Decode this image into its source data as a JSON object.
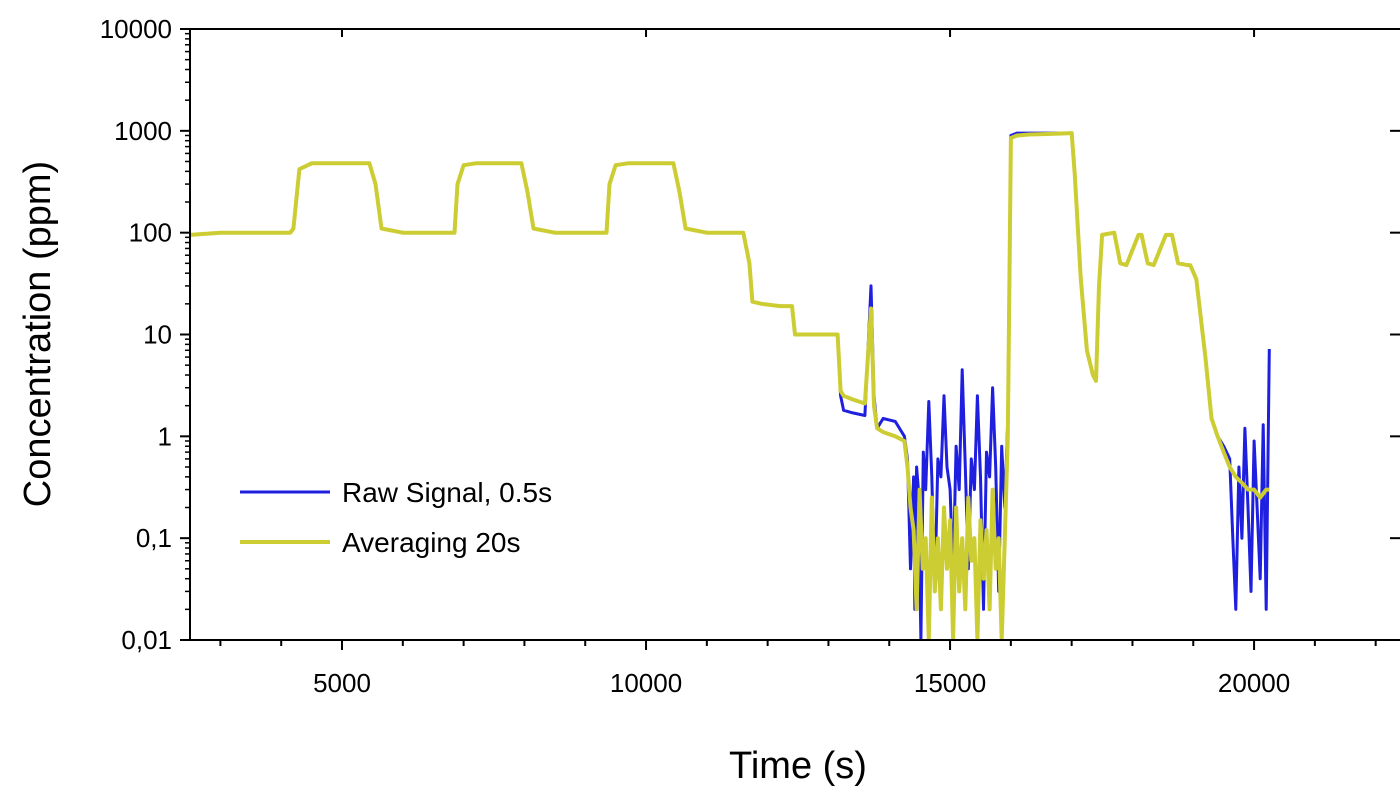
{
  "chart_data": {
    "type": "line",
    "title": "",
    "xlabel": "Time (s)",
    "ylabel": "Concentration (ppm)",
    "xlim": [
      2500,
      22400
    ],
    "ylim": [
      0.01,
      10000
    ],
    "yscale": "log",
    "grid": false,
    "legend_position": "bottom-left",
    "x_ticks": [
      5000,
      10000,
      15000,
      20000
    ],
    "x_tick_labels": [
      "5000",
      "10000",
      "15000",
      "20000"
    ],
    "y_ticks": [
      0.01,
      0.1,
      1,
      10,
      100,
      1000,
      10000
    ],
    "y_tick_labels": [
      "0,01",
      "0,1",
      "1",
      "10",
      "100",
      "1000",
      "10000"
    ],
    "series": [
      {
        "name": "Raw Signal, 0.5s",
        "color": "#1f1fe0",
        "x": [
          2500,
          3000,
          3500,
          4100,
          4150,
          4200,
          4300,
          4500,
          5000,
          5450,
          5550,
          5650,
          6000,
          6850,
          6900,
          7000,
          7200,
          7500,
          7950,
          8050,
          8150,
          8500,
          9350,
          9400,
          9500,
          9700,
          10000,
          10450,
          10550,
          10650,
          11000,
          11600,
          11700,
          11750,
          11900,
          12200,
          12400,
          12450,
          12550,
          12800,
          13150,
          13200,
          13250,
          13400,
          13600,
          13700,
          13750,
          13800,
          13900,
          14100,
          14250,
          14300,
          14350,
          14400,
          14420,
          14450,
          14480,
          14520,
          14560,
          14600,
          14650,
          14700,
          14750,
          14800,
          14850,
          14900,
          14950,
          15000,
          15050,
          15100,
          15150,
          15200,
          15250,
          15300,
          15350,
          15400,
          15450,
          15500,
          15550,
          15600,
          15650,
          15700,
          15750,
          15800,
          15850,
          15900,
          15950,
          16000,
          16100,
          16300,
          16600,
          17000,
          17050,
          17150,
          17250,
          17350,
          17400,
          17450,
          17500,
          17700,
          17800,
          17900,
          18100,
          18150,
          18250,
          18350,
          18550,
          18650,
          18750,
          18900,
          18950,
          19050,
          19200,
          19300,
          19400,
          19500,
          19600,
          19650,
          19700,
          19750,
          19800,
          19850,
          19900,
          19950,
          20000,
          20050,
          20100,
          20150,
          20200,
          20250
        ],
        "values": [
          95,
          100,
          100,
          100,
          100,
          110,
          420,
          480,
          480,
          480,
          300,
          110,
          100,
          100,
          300,
          460,
          480,
          480,
          480,
          250,
          110,
          100,
          100,
          300,
          460,
          480,
          480,
          480,
          250,
          110,
          100,
          100,
          50,
          21,
          20,
          19,
          19,
          10,
          10,
          10,
          10,
          2.5,
          1.8,
          1.7,
          1.6,
          30,
          2.5,
          1.2,
          1.5,
          1.4,
          1.0,
          0.6,
          0.05,
          0.4,
          0.02,
          0.5,
          0.3,
          0.01,
          0.7,
          0.3,
          2.2,
          0.4,
          0.03,
          0.6,
          0.4,
          2.5,
          0.5,
          0.3,
          0.04,
          0.8,
          0.3,
          4.5,
          0.5,
          0.05,
          0.6,
          0.3,
          2.5,
          0.4,
          0.02,
          0.7,
          0.4,
          3.0,
          0.5,
          0.03,
          0.8,
          0.2,
          1.5,
          900,
          950,
          950,
          950,
          950,
          380,
          35,
          7,
          4,
          3.5,
          30,
          95,
          100,
          50,
          48,
          95,
          95,
          50,
          48,
          95,
          95,
          50,
          48,
          48,
          35,
          6,
          1.5,
          1.0,
          0.8,
          0.6,
          0.1,
          0.02,
          0.5,
          0.1,
          1.2,
          0.2,
          0.03,
          0.9,
          0.2,
          0.04,
          1.3,
          0.02,
          7.2
        ]
      },
      {
        "name": "Averaging 20s",
        "color": "#cccc33",
        "x": [
          2500,
          3000,
          3500,
          4100,
          4150,
          4200,
          4300,
          4500,
          5000,
          5450,
          5550,
          5650,
          6000,
          6850,
          6900,
          7000,
          7200,
          7500,
          7950,
          8050,
          8150,
          8500,
          9350,
          9400,
          9500,
          9700,
          10000,
          10450,
          10550,
          10650,
          11000,
          11600,
          11700,
          11750,
          11900,
          12200,
          12400,
          12450,
          12550,
          12800,
          13150,
          13200,
          13250,
          13400,
          13600,
          13700,
          13750,
          13800,
          13900,
          14100,
          14250,
          14300,
          14350,
          14400,
          14450,
          14500,
          14550,
          14600,
          14650,
          14700,
          14750,
          14800,
          14850,
          14900,
          14950,
          15000,
          15050,
          15100,
          15150,
          15200,
          15250,
          15300,
          15350,
          15400,
          15450,
          15500,
          15550,
          15600,
          15650,
          15700,
          15750,
          15800,
          15850,
          15900,
          15950,
          16000,
          16100,
          16300,
          16600,
          17000,
          17050,
          17150,
          17250,
          17350,
          17400,
          17450,
          17500,
          17700,
          17800,
          17900,
          18100,
          18150,
          18250,
          18350,
          18550,
          18650,
          18750,
          18900,
          18950,
          19050,
          19200,
          19300,
          19400,
          19500,
          19600,
          19700,
          19800,
          19900,
          20000,
          20100,
          20200,
          20250
        ],
        "values": [
          95,
          100,
          100,
          100,
          100,
          110,
          420,
          480,
          480,
          480,
          300,
          110,
          100,
          100,
          300,
          460,
          480,
          480,
          480,
          250,
          110,
          100,
          100,
          300,
          460,
          480,
          480,
          480,
          250,
          110,
          100,
          100,
          50,
          21,
          20,
          19,
          19,
          10,
          10,
          10,
          10,
          2.8,
          2.5,
          2.3,
          2.1,
          18,
          2.0,
          1.2,
          1.1,
          1.0,
          0.9,
          0.5,
          0.2,
          0.12,
          0.02,
          0.3,
          0.05,
          0.1,
          0.01,
          0.25,
          0.03,
          0.1,
          0.02,
          0.2,
          0.05,
          0.15,
          0.01,
          0.2,
          0.03,
          0.1,
          0.02,
          0.25,
          0.06,
          0.1,
          0.01,
          0.15,
          0.04,
          0.12,
          0.02,
          0.3,
          0.05,
          0.1,
          0.01,
          0.1,
          1.0,
          850,
          900,
          920,
          930,
          950,
          380,
          35,
          7,
          4,
          3.5,
          30,
          95,
          100,
          50,
          48,
          95,
          95,
          50,
          48,
          95,
          95,
          50,
          48,
          48,
          35,
          6,
          1.5,
          1.0,
          0.7,
          0.5,
          0.4,
          0.35,
          0.3,
          0.3,
          0.25,
          0.3,
          0.3
        ]
      }
    ]
  }
}
